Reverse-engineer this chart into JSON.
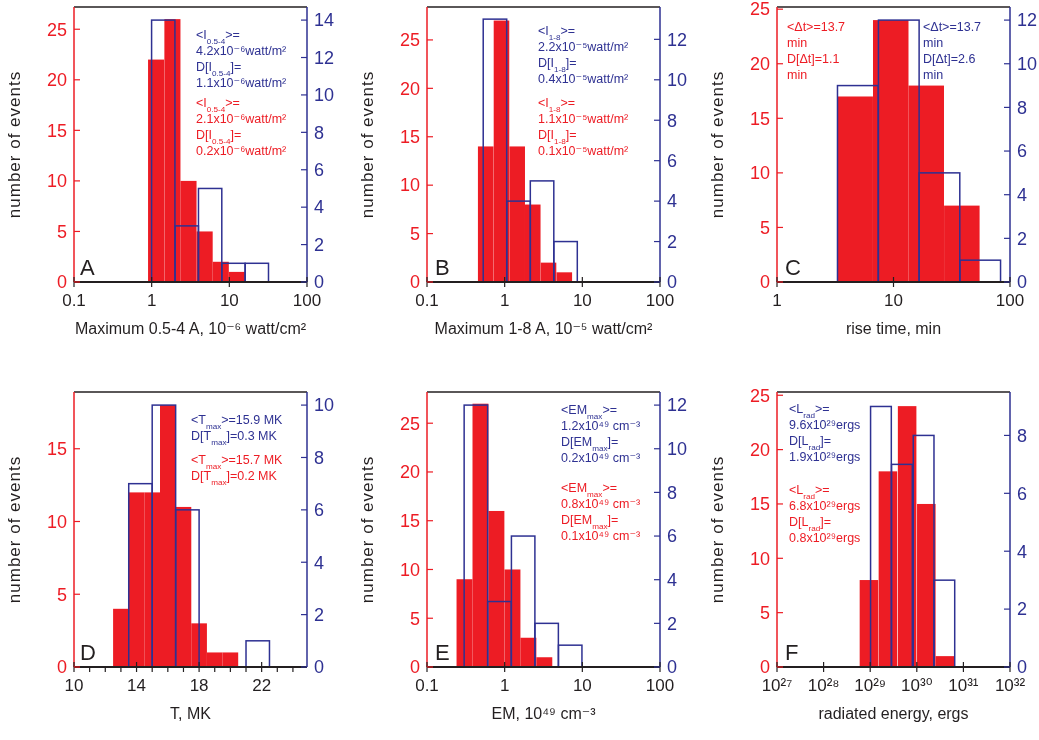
{
  "chart_data": [
    {
      "type": "bar",
      "xlabel": "Maximum 0.5-4 A, 10⁻⁶ watt/cm²",
      "ylabel": "number of events",
      "log": "x",
      "xlim": [
        0.1,
        100
      ],
      "xticks": [
        0.1,
        1,
        10,
        100
      ],
      "ylim": [
        0,
        27.2
      ],
      "yticks": [
        0,
        5,
        10,
        15,
        20,
        25
      ],
      "y2lim": [
        0,
        14.7
      ],
      "y2ticks": [
        0,
        2,
        4,
        6,
        8,
        10,
        12,
        14
      ],
      "series": [
        {
          "color": "#2e3192",
          "axis": "y2",
          "x": [
            1.41,
            2.83,
            5.66,
            11.3,
            22.6
          ],
          "values": [
            14,
            3,
            5,
            1,
            1
          ]
        },
        {
          "color": "#ed1c24",
          "x": [
            1.14,
            1.85,
            2.98,
            4.81,
            7.76,
            12.5
          ],
          "values": [
            22,
            26,
            10,
            5,
            2,
            1
          ]
        }
      ],
      "annotations": [
        "<I$_{0.5-4}$>=\n4.2x10⁻⁶watt/m²\nD[I$_{0.5-4}$]=\n1.1x10⁻⁶watt/m²",
        "<I$_{0.5-4}$>=\n2.1x10⁻⁶watt/m²\nD[I$_{0.5-4}$]=\n0.2x10⁻⁶watt/m²",
        "A"
      ]
    },
    {
      "type": "bar",
      "xlabel": "Maximum 1-8 A, 10⁻⁵ watt/cm²",
      "ylabel": "number of events",
      "log": "x",
      "xlim": [
        0.1,
        100
      ],
      "xticks": [
        0.1,
        1,
        10,
        100
      ],
      "ylim": [
        0,
        28.4
      ],
      "yticks": [
        0,
        5,
        10,
        15,
        20,
        25
      ],
      "y2lim": [
        0,
        13.6
      ],
      "y2ticks": [
        0,
        2,
        4,
        6,
        8,
        10,
        12
      ],
      "series": [
        {
          "color": "#2e3192",
          "axis": "y2",
          "x": [
            0.75,
            1.51,
            3.03,
            6.08
          ],
          "values": [
            13,
            4,
            5,
            2
          ]
        },
        {
          "color": "#ed1c24",
          "x": [
            0.57,
            0.91,
            1.45,
            2.3,
            3.67,
            5.86
          ],
          "values": [
            14,
            27,
            14,
            8,
            2,
            1
          ]
        }
      ],
      "annotations": [
        "<I$_{1-8}$>=\n2.2x10⁻⁵watt/m²\nD[I$_{1-8}$]=\n0.4x10⁻⁵watt/m²",
        "<I$_{1-8}$>=\n1.1x10⁻⁵watt/m²\nD[I$_{1-8}$]=\n0.1x10⁻⁵watt/m²",
        "B"
      ]
    },
    {
      "type": "bar",
      "xlabel": "rise time, min",
      "ylabel": "number of events",
      "log": "x",
      "xlim": [
        1,
        100
      ],
      "xticks": [
        1,
        10,
        100
      ],
      "ylim": [
        0,
        25.2
      ],
      "yticks": [
        0,
        5,
        10,
        15,
        20,
        25
      ],
      "y2lim": [
        0,
        12.6
      ],
      "y2ticks": [
        0,
        2,
        4,
        6,
        8,
        10,
        12
      ],
      "series": [
        {
          "color": "#2e3192",
          "axis": "y2",
          "x": [
            4.94,
            11.1,
            24.8,
            55.5
          ],
          "values": [
            9,
            12,
            5,
            1
          ]
        },
        {
          "color": "#ed1c24",
          "x": [
            4.69,
            9.47,
            19.1,
            38.6
          ],
          "values": [
            17,
            24,
            18,
            7
          ]
        }
      ],
      "annotations": [
        "<Δt>=13.7\nmin\nD[Δt]=2.6\nmin",
        "<Δt>=13.7\nmin\nD[Δt]=1.1\nmin",
        "C"
      ]
    },
    {
      "type": "bar",
      "xlabel": "T, MK",
      "ylabel": "number of events",
      "xlim": [
        10,
        24.9
      ],
      "xticks": [
        10,
        {
          "value": 11,
          "label": null
        },
        {
          "value": 12,
          "label": null
        },
        {
          "value": 13,
          "label": null
        },
        14,
        {
          "value": 15,
          "label": null
        },
        {
          "value": 16,
          "label": null
        },
        {
          "value": 17,
          "label": null
        },
        18,
        {
          "value": 19,
          "label": null
        },
        {
          "value": 20,
          "label": null
        },
        {
          "value": 21,
          "label": null
        },
        22,
        {
          "value": 23,
          "label": null
        },
        {
          "value": 24,
          "label": null
        }
      ],
      "ylim": [
        0,
        18.9
      ],
      "yticks": [
        0,
        5,
        10,
        15
      ],
      "y2lim": [
        0,
        10.5
      ],
      "y2ticks": [
        0,
        2,
        4,
        6,
        8,
        10
      ],
      "series": [
        {
          "color": "#2e3192",
          "axis": "y2",
          "x": [
            14.25,
            15.75,
            17.25,
            18.75,
            20.25,
            21.75
          ],
          "values": [
            7,
            10,
            6,
            0,
            0,
            1
          ]
        },
        {
          "color": "#ed1c24",
          "x": [
            13,
            14,
            15,
            16,
            17,
            18,
            19,
            20
          ],
          "values": [
            4,
            12,
            12,
            18,
            11,
            3,
            1,
            1
          ]
        }
      ],
      "annotations": [
        "<T$_{max}$>=15.9 MK\nD[T$_{max}$]=0.3 MK",
        "<T$_{max}$>=15.7 MK\nD[T$_{max}$]=0.2 MK",
        "D"
      ]
    },
    {
      "type": "bar",
      "xlabel": "EM, 10⁴⁹ cm⁻³",
      "ylabel": "number of events",
      "log": "x",
      "xlim": [
        0.1,
        100
      ],
      "xticks": [
        0.1,
        1,
        10,
        100
      ],
      "ylim": [
        0,
        28.2
      ],
      "yticks": [
        0,
        5,
        10,
        15,
        20,
        25
      ],
      "y2lim": [
        0,
        12.6
      ],
      "y2ticks": [
        0,
        2,
        4,
        6,
        8,
        10,
        12
      ],
      "series": [
        {
          "color": "#2e3192",
          "axis": "y2",
          "x": [
            0.426,
            0.857,
            1.73,
            3.47,
            6.98
          ],
          "values": [
            12,
            3,
            6,
            2,
            1
          ]
        },
        {
          "color": "#ed1c24",
          "x": [
            0.304,
            0.488,
            0.783,
            1.26,
            2.02,
            3.24
          ],
          "values": [
            9,
            27,
            16,
            10,
            3,
            1
          ]
        }
      ],
      "annotations": [
        "<EM$_{max}$>=\n1.2x10⁴⁹ cm⁻³\nD[EM$_{max}$]=\n0.2x10⁴⁹ cm⁻³",
        "<EM$_{max}$>=\n0.8x10⁴⁹ cm⁻³\nD[EM$_{max}$]=\n0.1x10⁴⁹ cm⁻³",
        "E"
      ]
    },
    {
      "type": "bar",
      "xlabel": "radiated energy, ergs",
      "ylabel": "number of events",
      "log": "x",
      "xlim": [
        1e+27,
        1e+32
      ],
      "xticks": [
        {
          "value": 1e+27,
          "label": "10²⁷"
        },
        {
          "value": 1e+28,
          "label": "10²⁸"
        },
        {
          "value": 1e+29,
          "label": "10²⁹"
        },
        {
          "value": 1e+30,
          "label": "10³⁰"
        },
        {
          "value": 1e+31,
          "label": "10³¹"
        },
        {
          "value": 1e+32,
          "label": "10³²"
        }
      ],
      "ylim": [
        0,
        25.3
      ],
      "yticks": [
        0,
        5,
        10,
        15,
        20,
        25
      ],
      "y2lim": [
        0,
        9.5
      ],
      "y2ticks": [
        0,
        2,
        4,
        6,
        8
      ],
      "series": [
        {
          "color": "#2e3192",
          "axis": "y2",
          "x": [
            1.7e+29,
            4.8e+29,
            1.4e+30,
            3.9e+30
          ],
          "values": [
            9,
            7,
            8,
            3
          ]
        },
        {
          "color": "#ed1c24",
          "x": [
            9.4e+28,
            2.4e+29,
            6.2e+29,
            1.6e+30,
            4e+30
          ],
          "values": [
            8,
            18,
            24,
            15,
            1
          ]
        }
      ],
      "annotations": [
        "<L$_{rad}$>=\n9.6x10²⁹ergs\nD[L$_{rad}$]=\n1.9x10²⁹ergs",
        "<L$_{rad}$>=\n6.8x10²⁹ergs\nD[L$_{rad}$]=\n0.8x10²⁹ergs",
        "F"
      ]
    }
  ]
}
